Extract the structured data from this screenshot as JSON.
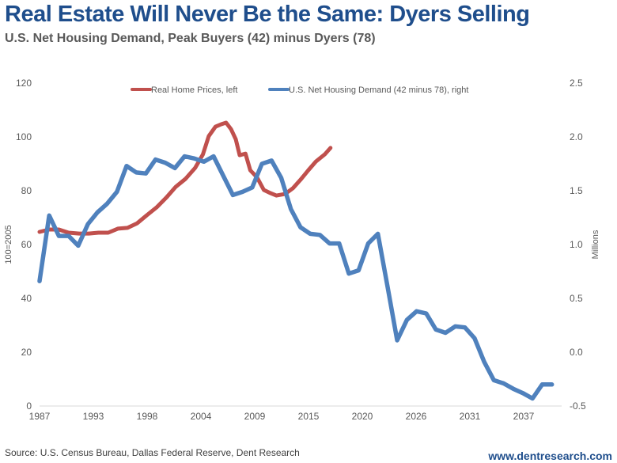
{
  "header": {
    "title": "Real Estate Will Never Be the Same: Dyers Selling",
    "subtitle": "U.S. Net Housing Demand, Peak Buyers (42) minus Dyers (78)"
  },
  "footer": {
    "source": "Source: U.S. Census Bureau, Dallas Federal Reserve, Dent Research",
    "website": "www.dentresearch.com"
  },
  "chart_data": {
    "type": "line",
    "title": "Real Estate Will Never Be the Same: Dyers Selling",
    "subtitle": "U.S. Net Housing Demand, Peak Buyers (42) minus Dyers (78)",
    "xlabel": "",
    "ylabel_left": "100=2005",
    "ylabel_right": "Millions",
    "xlim": [
      1987,
      2041
    ],
    "ylim_left": [
      0,
      120
    ],
    "ylim_right": [
      -0.5,
      2.5
    ],
    "x_ticks": [
      "1987",
      "1993",
      "1998",
      "2004",
      "2009",
      "2015",
      "2020",
      "2026",
      "2031",
      "2037"
    ],
    "y_ticks_left": [
      "0",
      "20",
      "40",
      "60",
      "80",
      "100",
      "120"
    ],
    "y_ticks_right": [
      "-0.5",
      "0.0",
      "0.5",
      "1.0",
      "1.5",
      "2.0",
      "2.5"
    ],
    "grid": false,
    "legend_position": "top",
    "colors": {
      "home_prices": "#c0504d",
      "net_demand": "#4f81bd",
      "axis": "#d9d9d9"
    },
    "series": [
      {
        "name": "Real Home Prices, left",
        "axis": "left",
        "color": "#c0504d",
        "x": [
          1987.0,
          1988.0,
          1989.0,
          1990.0,
          1991.1,
          1992.1,
          1993.1,
          1994.1,
          1995.1,
          1996.1,
          1997.1,
          1998.1,
          1999.1,
          2000.1,
          2001.1,
          2002.1,
          2003.1,
          2003.9,
          2004.5,
          2005.2,
          2005.8,
          2006.3,
          2006.8,
          2007.3,
          2007.7,
          2008.3,
          2008.8,
          2009.5,
          2010.2,
          2010.9,
          2011.5,
          2012.4,
          2013.2,
          2014.0,
          2014.8,
          2015.6,
          2016.5,
          2017.1
        ],
        "values": [
          64.7,
          65.6,
          65.6,
          64.4,
          64.1,
          64.1,
          64.4,
          64.4,
          65.9,
          66.2,
          67.9,
          70.9,
          73.8,
          77.4,
          81.5,
          84.4,
          88.5,
          93.5,
          100.3,
          103.8,
          104.7,
          105.3,
          102.9,
          99.1,
          93.2,
          93.8,
          87.6,
          85.0,
          80.3,
          79.1,
          78.2,
          78.8,
          80.9,
          84.1,
          87.6,
          90.9,
          93.5,
          95.9
        ]
      },
      {
        "name": "U.S. Net Housing Demand (42 minus 78), right",
        "axis": "right",
        "color": "#4f81bd",
        "x": [
          1987,
          1988,
          1989,
          1990,
          1991,
          1992,
          1993,
          1994,
          1995,
          1996,
          1997,
          1998,
          1999,
          2000,
          2001,
          2002,
          2003,
          2004,
          2005,
          2006,
          2007,
          2008,
          2009,
          2010,
          2011,
          2012,
          2013,
          2014,
          2015,
          2016,
          2017,
          2018,
          2019,
          2020,
          2021,
          2022,
          2023,
          2024,
          2025,
          2026,
          2027,
          2028,
          2029,
          2030,
          2031,
          2032,
          2033,
          2034,
          2035,
          2036,
          2037,
          2038,
          2039,
          2040
        ],
        "values": [
          0.66,
          1.27,
          1.08,
          1.08,
          0.99,
          1.19,
          1.3,
          1.38,
          1.49,
          1.73,
          1.67,
          1.66,
          1.79,
          1.76,
          1.71,
          1.82,
          1.8,
          1.77,
          1.82,
          1.64,
          1.46,
          1.49,
          1.53,
          1.75,
          1.78,
          1.62,
          1.33,
          1.16,
          1.1,
          1.09,
          1.01,
          1.01,
          0.73,
          0.76,
          1.01,
          1.1,
          0.61,
          0.11,
          0.3,
          0.38,
          0.36,
          0.21,
          0.18,
          0.24,
          0.23,
          0.13,
          -0.09,
          -0.26,
          -0.29,
          -0.34,
          -0.38,
          -0.43,
          -0.3,
          -0.3
        ]
      }
    ]
  }
}
